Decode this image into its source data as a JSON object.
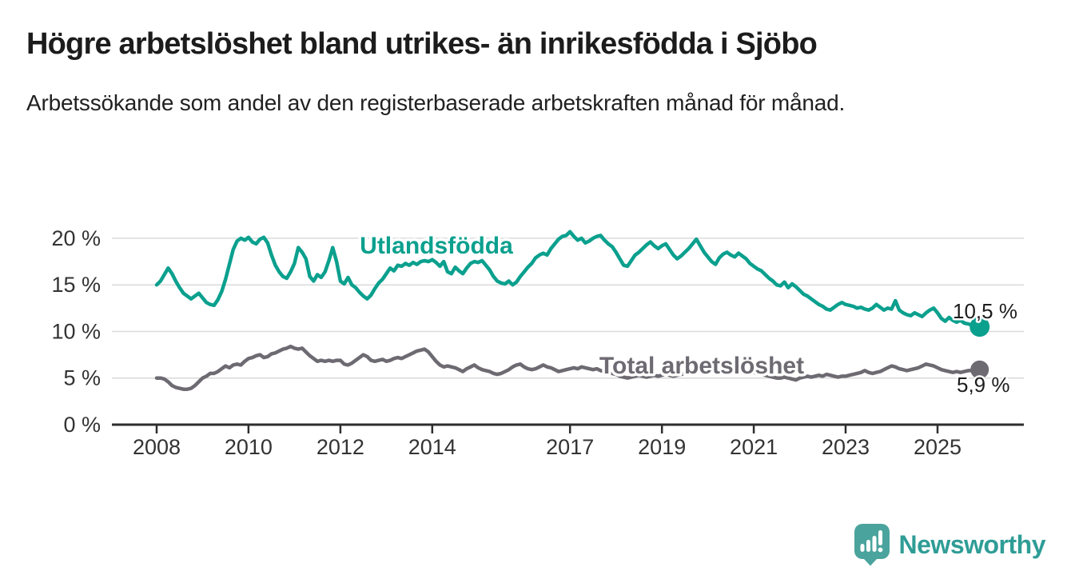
{
  "title": "Högre arbetslöshet bland utrikes- än inrikesfödda i Sjöbo",
  "subtitle": "Arbetssökande som andel av den registerbaserade arbetskraften månad för månad.",
  "branding": {
    "logo_text": "Newsworthy",
    "logo_color": "#2f9d96",
    "icon_color": "#4aa49d"
  },
  "chart_data": {
    "type": "line",
    "unit": "%",
    "x_monthly_start": "2008-01",
    "x_monthly_end": "2025-12",
    "ylim": [
      0,
      21
    ],
    "grid": true,
    "y_ticks": [
      {
        "value": 0,
        "label": "0 %"
      },
      {
        "value": 5,
        "label": "5 %"
      },
      {
        "value": 10,
        "label": "10 %"
      },
      {
        "value": 15,
        "label": "15 %"
      },
      {
        "value": 20,
        "label": "20 %"
      }
    ],
    "x_ticks": [
      {
        "year": 2008,
        "label": "2008"
      },
      {
        "year": 2010,
        "label": "2010"
      },
      {
        "year": 2012,
        "label": "2012"
      },
      {
        "year": 2014,
        "label": "2014"
      },
      {
        "year": 2017,
        "label": "2017"
      },
      {
        "year": 2019,
        "label": "2019"
      },
      {
        "year": 2021,
        "label": "2021"
      },
      {
        "year": 2023,
        "label": "2023"
      },
      {
        "year": 2025,
        "label": "2025"
      }
    ],
    "series": [
      {
        "name": "Utlandsfödda",
        "color": "#0ba08e",
        "end_label": "10,5 %",
        "values": [
          15.0,
          15.4,
          16.1,
          16.8,
          16.2,
          15.4,
          14.7,
          14.1,
          13.8,
          13.5,
          13.8,
          14.1,
          13.6,
          13.1,
          12.9,
          12.8,
          13.4,
          14.3,
          15.6,
          17.2,
          18.8,
          19.7,
          20.0,
          19.8,
          20.1,
          19.6,
          19.4,
          19.9,
          20.1,
          19.5,
          18.2,
          17.1,
          16.4,
          15.9,
          15.7,
          16.4,
          17.3,
          19.0,
          18.5,
          17.8,
          15.9,
          15.4,
          16.1,
          15.8,
          16.4,
          17.6,
          19.0,
          17.5,
          15.4,
          15.1,
          15.8,
          15.0,
          14.7,
          14.2,
          13.8,
          13.5,
          13.9,
          14.6,
          15.2,
          15.6,
          16.2,
          16.8,
          16.5,
          17.1,
          17.0,
          17.3,
          17.1,
          17.4,
          17.2,
          17.5,
          17.6,
          17.5,
          17.7,
          17.4,
          17.0,
          17.5,
          16.4,
          16.2,
          16.9,
          16.5,
          16.2,
          16.8,
          17.3,
          17.5,
          17.4,
          17.6,
          17.1,
          16.6,
          15.9,
          15.4,
          15.2,
          15.1,
          15.4,
          15.0,
          15.3,
          15.9,
          16.4,
          16.9,
          17.3,
          17.9,
          18.2,
          18.4,
          18.2,
          18.9,
          19.4,
          19.9,
          20.2,
          20.3,
          20.7,
          20.2,
          19.8,
          20.0,
          19.5,
          19.7,
          20.0,
          20.2,
          20.3,
          19.8,
          19.4,
          19.1,
          18.5,
          17.8,
          17.1,
          17.0,
          17.6,
          18.2,
          18.5,
          18.9,
          19.3,
          19.6,
          19.2,
          18.9,
          19.2,
          19.4,
          18.8,
          18.2,
          17.8,
          18.1,
          18.5,
          18.9,
          19.4,
          19.9,
          19.2,
          18.5,
          18.0,
          17.5,
          17.2,
          17.9,
          18.3,
          18.5,
          18.2,
          18.0,
          18.4,
          18.1,
          17.8,
          17.3,
          17.0,
          16.7,
          16.5,
          16.1,
          15.7,
          15.4,
          15.0,
          14.9,
          15.3,
          14.7,
          15.1,
          14.8,
          14.4,
          14.0,
          13.8,
          13.5,
          13.2,
          12.9,
          12.7,
          12.4,
          12.3,
          12.6,
          12.9,
          13.1,
          12.9,
          12.8,
          12.7,
          12.5,
          12.6,
          12.4,
          12.3,
          12.5,
          12.9,
          12.6,
          12.3,
          12.5,
          12.4,
          13.3,
          12.3,
          12.0,
          11.8,
          11.7,
          12.0,
          11.8,
          11.6,
          12.0,
          12.3,
          12.5,
          12.0,
          11.4,
          11.1,
          11.5,
          11.2,
          11.0,
          11.2,
          10.9,
          10.8,
          10.7,
          10.6,
          10.5
        ]
      },
      {
        "name": "Total arbetslöshet",
        "color": "#6d6a72",
        "end_label": "5,9 %",
        "values": [
          5.0,
          5.0,
          4.9,
          4.6,
          4.2,
          4.0,
          3.9,
          3.8,
          3.8,
          3.9,
          4.2,
          4.6,
          5.0,
          5.2,
          5.5,
          5.5,
          5.7,
          6.0,
          6.3,
          6.1,
          6.4,
          6.5,
          6.4,
          6.8,
          7.1,
          7.2,
          7.4,
          7.5,
          7.2,
          7.3,
          7.6,
          7.7,
          7.9,
          8.1,
          8.2,
          8.4,
          8.2,
          8.1,
          8.2,
          7.8,
          7.4,
          7.1,
          6.8,
          6.9,
          6.8,
          6.9,
          6.8,
          6.9,
          6.9,
          6.5,
          6.4,
          6.6,
          6.9,
          7.2,
          7.5,
          7.3,
          6.9,
          6.8,
          6.9,
          7.0,
          6.8,
          6.9,
          7.1,
          7.2,
          7.1,
          7.3,
          7.5,
          7.7,
          7.9,
          8.0,
          8.1,
          7.8,
          7.3,
          6.8,
          6.4,
          6.2,
          6.3,
          6.2,
          6.1,
          5.9,
          5.7,
          6.0,
          6.2,
          6.4,
          6.1,
          5.9,
          5.8,
          5.7,
          5.5,
          5.4,
          5.5,
          5.7,
          5.9,
          6.2,
          6.4,
          6.5,
          6.2,
          6.0,
          5.9,
          6.0,
          6.2,
          6.4,
          6.2,
          6.1,
          5.9,
          5.7,
          5.8,
          5.9,
          6.0,
          6.1,
          6.0,
          6.2,
          6.1,
          6.0,
          5.9,
          6.0,
          5.8,
          5.7,
          5.6,
          5.5,
          5.4,
          5.2,
          5.1,
          5.0,
          5.1,
          5.2,
          5.3,
          5.2,
          5.1,
          5.2,
          5.3,
          5.2,
          5.3,
          5.4,
          5.3,
          5.2,
          5.3,
          5.4,
          5.5,
          5.4,
          5.5,
          5.6,
          5.7,
          5.8,
          5.9,
          6.0,
          6.1,
          6.3,
          6.4,
          6.3,
          6.2,
          6.1,
          6.0,
          5.9,
          5.8,
          5.7,
          5.6,
          5.5,
          5.4,
          5.3,
          5.2,
          5.1,
          5.0,
          5.0,
          5.1,
          5.0,
          4.9,
          4.8,
          5.0,
          5.1,
          5.2,
          5.1,
          5.2,
          5.3,
          5.2,
          5.4,
          5.3,
          5.2,
          5.1,
          5.2,
          5.2,
          5.3,
          5.4,
          5.5,
          5.6,
          5.8,
          5.6,
          5.5,
          5.6,
          5.7,
          5.9,
          6.1,
          6.3,
          6.2,
          6.0,
          5.9,
          5.8,
          5.9,
          6.0,
          6.1,
          6.3,
          6.5,
          6.4,
          6.3,
          6.1,
          5.9,
          5.8,
          5.7,
          5.6,
          5.7,
          5.6,
          5.7,
          5.8,
          5.8,
          5.8,
          5.9
        ]
      }
    ]
  }
}
